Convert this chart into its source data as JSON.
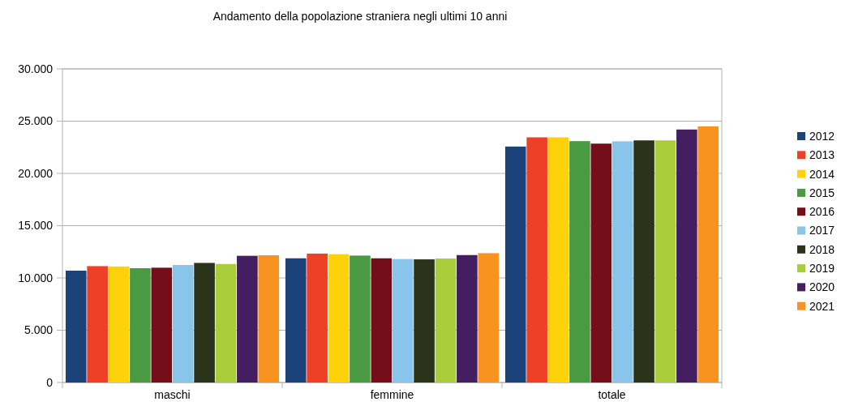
{
  "chart_data": {
    "type": "bar",
    "title": "Andamento della popolazione straniera negli ultimi 10 anni",
    "categories": [
      "maschi",
      "femmine",
      "totale"
    ],
    "series": [
      {
        "name": "2012",
        "color": "#1b4379",
        "values": [
          10700,
          11880,
          22570
        ]
      },
      {
        "name": "2013",
        "color": "#ee4026",
        "values": [
          11130,
          12330,
          23450
        ]
      },
      {
        "name": "2014",
        "color": "#fdd20a",
        "values": [
          11100,
          12270,
          23450
        ]
      },
      {
        "name": "2015",
        "color": "#4a9a43",
        "values": [
          10930,
          12140,
          23090
        ]
      },
      {
        "name": "2016",
        "color": "#730e1a",
        "values": [
          10980,
          11880,
          22850
        ]
      },
      {
        "name": "2017",
        "color": "#89c4ea",
        "values": [
          11240,
          11810,
          23070
        ]
      },
      {
        "name": "2018",
        "color": "#2b341b",
        "values": [
          11440,
          11780,
          23160
        ]
      },
      {
        "name": "2019",
        "color": "#a9cd3a",
        "values": [
          11340,
          11860,
          23160
        ]
      },
      {
        "name": "2020",
        "color": "#431e60",
        "values": [
          12120,
          12190,
          24200
        ]
      },
      {
        "name": "2021",
        "color": "#f7931e",
        "values": [
          12170,
          12370,
          24500
        ]
      }
    ],
    "ylim": [
      0,
      30000
    ],
    "yticks": [
      {
        "value": 0,
        "label": "0"
      },
      {
        "value": 5000,
        "label": "5.000"
      },
      {
        "value": 10000,
        "label": "10.000"
      },
      {
        "value": 15000,
        "label": "15.000"
      },
      {
        "value": 20000,
        "label": "20.000"
      },
      {
        "value": 25000,
        "label": "25.000"
      },
      {
        "value": 30000,
        "label": "30.000"
      }
    ],
    "grid": "y",
    "legend": "right"
  }
}
